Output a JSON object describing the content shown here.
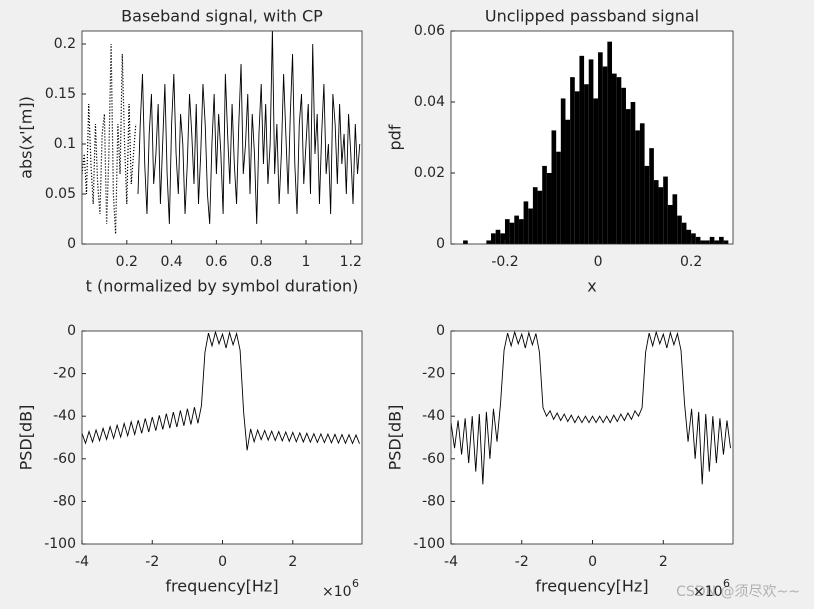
{
  "chart_data": [
    {
      "type": "line",
      "title": "Baseband signal, with CP",
      "x_label": "t (normalized by symbol duration)",
      "y_label": "abs(x'[m])",
      "xlim": [
        0,
        1.25
      ],
      "ylim": [
        0,
        0.213
      ],
      "xticks": [
        0.2,
        0.4,
        0.6,
        0.8,
        1,
        1.2
      ],
      "yticks": [
        0,
        0.05,
        0.1,
        0.15,
        0.2
      ],
      "series": [
        {
          "color": "#000000",
          "line_style": "dotted",
          "x": [
            0.0,
            0.01,
            0.02,
            0.03,
            0.04,
            0.05,
            0.06,
            0.07,
            0.08,
            0.09,
            0.1,
            0.11,
            0.12,
            0.13,
            0.14,
            0.15,
            0.16,
            0.17,
            0.18,
            0.19,
            0.2,
            0.21,
            0.22,
            0.23,
            0.24
          ],
          "values": [
            0.07,
            0.09,
            0.05,
            0.14,
            0.08,
            0.04,
            0.12,
            0.06,
            0.03,
            0.11,
            0.13,
            0.02,
            0.09,
            0.2,
            0.05,
            0.01,
            0.12,
            0.07,
            0.19,
            0.1,
            0.04,
            0.14,
            0.06,
            0.09,
            0.12
          ]
        },
        {
          "color": "#000000",
          "line_style": "solid",
          "x": [
            0.25,
            0.26,
            0.27,
            0.28,
            0.29,
            0.3,
            0.31,
            0.32,
            0.33,
            0.34,
            0.35,
            0.36,
            0.37,
            0.38,
            0.39,
            0.4,
            0.41,
            0.42,
            0.43,
            0.44,
            0.45,
            0.46,
            0.47,
            0.48,
            0.49,
            0.5,
            0.51,
            0.52,
            0.53,
            0.54,
            0.55,
            0.56,
            0.57,
            0.58,
            0.59,
            0.6,
            0.61,
            0.62,
            0.63,
            0.64,
            0.65,
            0.66,
            0.67,
            0.68,
            0.69,
            0.7,
            0.71,
            0.72,
            0.73,
            0.74,
            0.75,
            0.76,
            0.77,
            0.78,
            0.79,
            0.8,
            0.81,
            0.82,
            0.83,
            0.84,
            0.85,
            0.86,
            0.87,
            0.88,
            0.89,
            0.9,
            0.91,
            0.92,
            0.93,
            0.94,
            0.95,
            0.96,
            0.97,
            0.98,
            0.99,
            1.0,
            1.01,
            1.02,
            1.03,
            1.04,
            1.05,
            1.06,
            1.07,
            1.08,
            1.09,
            1.1,
            1.11,
            1.12,
            1.13,
            1.14,
            1.15,
            1.16,
            1.17,
            1.18,
            1.19,
            1.2,
            1.21,
            1.22,
            1.23,
            1.24
          ],
          "values": [
            0.05,
            0.12,
            0.17,
            0.08,
            0.03,
            0.11,
            0.15,
            0.06,
            0.09,
            0.14,
            0.04,
            0.1,
            0.16,
            0.07,
            0.02,
            0.12,
            0.17,
            0.09,
            0.05,
            0.13,
            0.1,
            0.03,
            0.08,
            0.15,
            0.11,
            0.06,
            0.14,
            0.04,
            0.09,
            0.16,
            0.12,
            0.05,
            0.02,
            0.1,
            0.15,
            0.07,
            0.13,
            0.09,
            0.03,
            0.17,
            0.11,
            0.06,
            0.14,
            0.08,
            0.04,
            0.12,
            0.18,
            0.07,
            0.1,
            0.15,
            0.05,
            0.13,
            0.09,
            0.02,
            0.11,
            0.16,
            0.08,
            0.14,
            0.06,
            0.1,
            0.215,
            0.07,
            0.12,
            0.04,
            0.09,
            0.17,
            0.11,
            0.05,
            0.13,
            0.19,
            0.08,
            0.03,
            0.12,
            0.15,
            0.06,
            0.1,
            0.14,
            0.05,
            0.2,
            0.09,
            0.13,
            0.04,
            0.11,
            0.16,
            0.07,
            0.1,
            0.03,
            0.15,
            0.12,
            0.06,
            0.14,
            0.08,
            0.11,
            0.05,
            0.13,
            0.09,
            0.04,
            0.12,
            0.07,
            0.1
          ]
        }
      ]
    },
    {
      "type": "histogram",
      "title": "Unclipped passband signal",
      "x_label": "x",
      "y_label": "pdf",
      "xlim": [
        -0.316,
        0.29
      ],
      "ylim": [
        0,
        0.06
      ],
      "xticks": [
        -0.2,
        0,
        0.2
      ],
      "yticks": [
        0,
        0.02,
        0.04,
        0.06
      ],
      "color": "#000000",
      "bins": [
        -0.3,
        -0.29,
        -0.28,
        -0.27,
        -0.26,
        -0.25,
        -0.24,
        -0.23,
        -0.22,
        -0.21,
        -0.2,
        -0.19,
        -0.18,
        -0.17,
        -0.16,
        -0.15,
        -0.14,
        -0.13,
        -0.12,
        -0.11,
        -0.1,
        -0.09,
        -0.08,
        -0.07,
        -0.06,
        -0.05,
        -0.04,
        -0.03,
        -0.02,
        -0.01,
        0,
        0.01,
        0.02,
        0.03,
        0.04,
        0.05,
        0.06,
        0.07,
        0.08,
        0.09,
        0.1,
        0.11,
        0.12,
        0.13,
        0.14,
        0.15,
        0.16,
        0.17,
        0.18,
        0.19,
        0.2,
        0.21,
        0.22,
        0.23,
        0.24,
        0.25,
        0.26,
        0.27,
        0.28
      ],
      "values": [
        0,
        0.001,
        0,
        0,
        0,
        0,
        0.001,
        0.003,
        0.004,
        0.003,
        0.007,
        0.006,
        0.008,
        0.007,
        0.012,
        0.01,
        0.016,
        0.015,
        0.022,
        0.02,
        0.032,
        0.026,
        0.041,
        0.035,
        0.047,
        0.043,
        0.053,
        0.045,
        0.052,
        0.041,
        0.054,
        0.05,
        0.057,
        0.048,
        0.047,
        0.044,
        0.038,
        0.04,
        0.032,
        0.034,
        0.022,
        0.027,
        0.018,
        0.016,
        0.019,
        0.011,
        0.014,
        0.008,
        0.006,
        0.004,
        0.003,
        0.002,
        0.001,
        0.001,
        0.002,
        0.001,
        0.002,
        0.001
      ]
    },
    {
      "type": "line",
      "x_label": "frequency[Hz]",
      "y_label": "PSD[dB]",
      "x_multiplier": "×10",
      "x_multiplier_exponent": "6",
      "xlim": [
        -4,
        3.97
      ],
      "ylim": [
        -100,
        0
      ],
      "xticks": [
        -4,
        -2,
        0,
        2
      ],
      "yticks": [
        -100,
        -80,
        -60,
        -40,
        -20,
        0
      ],
      "series": [
        {
          "color": "#000000",
          "line_style": "solid",
          "x": [
            -4.0,
            -3.9,
            -3.8,
            -3.7,
            -3.6,
            -3.5,
            -3.4,
            -3.3,
            -3.2,
            -3.1,
            -3.0,
            -2.9,
            -2.8,
            -2.7,
            -2.6,
            -2.5,
            -2.4,
            -2.3,
            -2.2,
            -2.1,
            -2.0,
            -1.9,
            -1.8,
            -1.7,
            -1.6,
            -1.5,
            -1.4,
            -1.3,
            -1.2,
            -1.1,
            -1.0,
            -0.9,
            -0.8,
            -0.7,
            -0.6,
            -0.5,
            -0.4,
            -0.3,
            -0.2,
            -0.1,
            0.0,
            0.1,
            0.2,
            0.3,
            0.4,
            0.5,
            0.6,
            0.7,
            0.8,
            0.9,
            1.0,
            1.1,
            1.2,
            1.3,
            1.4,
            1.5,
            1.6,
            1.7,
            1.8,
            1.9,
            2.0,
            2.1,
            2.2,
            2.3,
            2.4,
            2.5,
            2.6,
            2.7,
            2.8,
            2.9,
            3.0,
            3.1,
            3.2,
            3.3,
            3.4,
            3.5,
            3.6,
            3.7,
            3.8,
            3.9
          ],
          "values": [
            -48,
            -52.7,
            -47.2,
            -52.1,
            -46.5,
            -51.5,
            -45.7,
            -50.9,
            -44.9,
            -50.4,
            -44.2,
            -49.8,
            -43.4,
            -49.2,
            -42.6,
            -48.6,
            -41.9,
            -48,
            -41.1,
            -47.4,
            -40.4,
            -46.8,
            -39.6,
            -46.2,
            -38.8,
            -45.6,
            -38.1,
            -45.1,
            -37.3,
            -44.5,
            -36.5,
            -43.9,
            -35.8,
            -43.3,
            -35,
            -10,
            -1,
            -7,
            -0.5,
            -6,
            -1.5,
            -8,
            -0.8,
            -6.5,
            -1.2,
            -9,
            -38,
            -56,
            -46,
            -52,
            -46.5,
            -51,
            -46.7,
            -51.2,
            -47,
            -51.4,
            -47.2,
            -51.6,
            -47.4,
            -51.8,
            -47.6,
            -52,
            -47.8,
            -52.1,
            -48,
            -52.2,
            -48.2,
            -52.3,
            -48.3,
            -52.4,
            -48.4,
            -52.5,
            -48.5,
            -52.6,
            -48.6,
            -52.7,
            -48.7,
            -52.8,
            -48.8,
            -52.9
          ]
        }
      ]
    },
    {
      "type": "line",
      "x_label": "frequency[Hz]",
      "y_label": "PSD[dB]",
      "x_multiplier": "×10",
      "x_multiplier_exponent": "6",
      "xlim": [
        -4,
        3.97
      ],
      "ylim": [
        -100,
        0
      ],
      "xticks": [
        -4,
        -2,
        0,
        2
      ],
      "yticks": [
        -100,
        -80,
        -60,
        -40,
        -20,
        0
      ],
      "series": [
        {
          "color": "#000000",
          "line_style": "solid",
          "x": [
            -4.0,
            -3.9,
            -3.8,
            -3.7,
            -3.6,
            -3.5,
            -3.4,
            -3.3,
            -3.2,
            -3.1,
            -3.0,
            -2.9,
            -2.8,
            -2.7,
            -2.6,
            -2.5,
            -2.4,
            -2.3,
            -2.2,
            -2.1,
            -2.0,
            -1.9,
            -1.8,
            -1.7,
            -1.6,
            -1.5,
            -1.4,
            -1.3,
            -1.2,
            -1.1,
            -1.0,
            -0.9,
            -0.8,
            -0.7,
            -0.6,
            -0.5,
            -0.4,
            -0.3,
            -0.2,
            -0.1,
            0.0,
            0.1,
            0.2,
            0.3,
            0.4,
            0.5,
            0.6,
            0.7,
            0.8,
            0.9,
            1.0,
            1.1,
            1.2,
            1.3,
            1.4,
            1.5,
            1.6,
            1.7,
            1.8,
            1.9,
            2.0,
            2.1,
            2.2,
            2.3,
            2.4,
            2.5,
            2.6,
            2.7,
            2.8,
            2.9,
            3.0,
            3.1,
            3.2,
            3.3,
            3.4,
            3.5,
            3.6,
            3.7,
            3.8,
            3.9
          ],
          "values": [
            -43,
            -55,
            -42,
            -58,
            -41,
            -62,
            -40,
            -66,
            -39,
            -72,
            -38,
            -60,
            -36.5,
            -52,
            -34,
            -9,
            -1,
            -7,
            -0.5,
            -6,
            -1.5,
            -8,
            -0.8,
            -6.5,
            -1.2,
            -10,
            -36,
            -40,
            -37.5,
            -41.5,
            -38.5,
            -42,
            -39,
            -42.5,
            -39.5,
            -43,
            -40,
            -43,
            -40,
            -43,
            -40,
            -43,
            -40,
            -43,
            -40,
            -43,
            -39.5,
            -42.5,
            -39,
            -42,
            -38.5,
            -41.5,
            -37.5,
            -40,
            -36,
            -10,
            -1,
            -7,
            -0.5,
            -6,
            -1.5,
            -8,
            -0.8,
            -6.5,
            -1.2,
            -9,
            -34,
            -52,
            -36.5,
            -60,
            -38,
            -72,
            -39,
            -66,
            -40,
            -62,
            -41,
            -58,
            -42,
            -55
          ]
        }
      ]
    }
  ],
  "watermark": "CSDN @须尽欢~~"
}
